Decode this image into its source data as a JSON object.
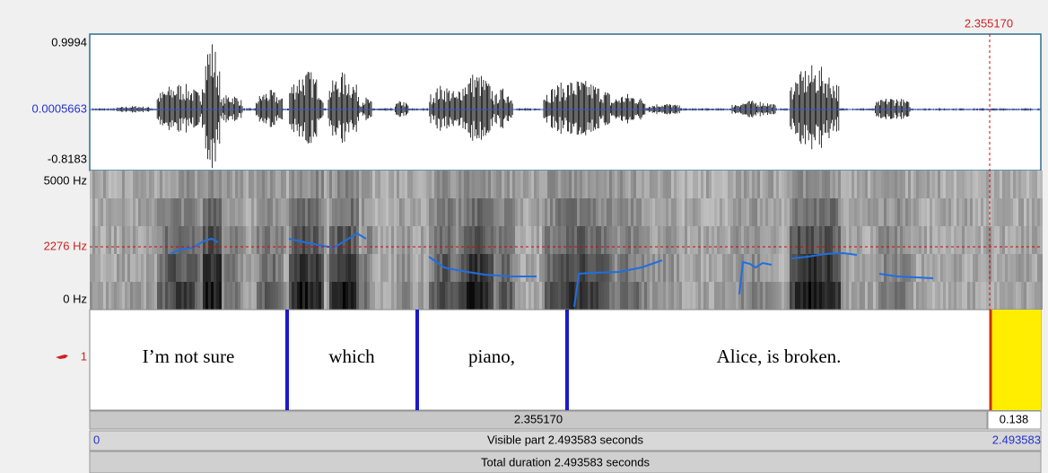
{
  "cursor_time": "2.355170",
  "waveform": {
    "max": "0.9994",
    "center": "0.0005663",
    "min": "-0.8183"
  },
  "spectrogram": {
    "max": "5000 Hz",
    "cursor": "2276 Hz",
    "min": "0 Hz"
  },
  "tier": {
    "name": "1",
    "intervals": [
      "I’m not sure",
      "which",
      "piano,",
      "Alice, is broken."
    ]
  },
  "selection": {
    "start": "2.355170",
    "length": "0.138"
  },
  "visible": {
    "start": "0",
    "label": "Visible part 2.493583 seconds",
    "end": "2.493583"
  },
  "total": "Total duration 2.493583 seconds"
}
